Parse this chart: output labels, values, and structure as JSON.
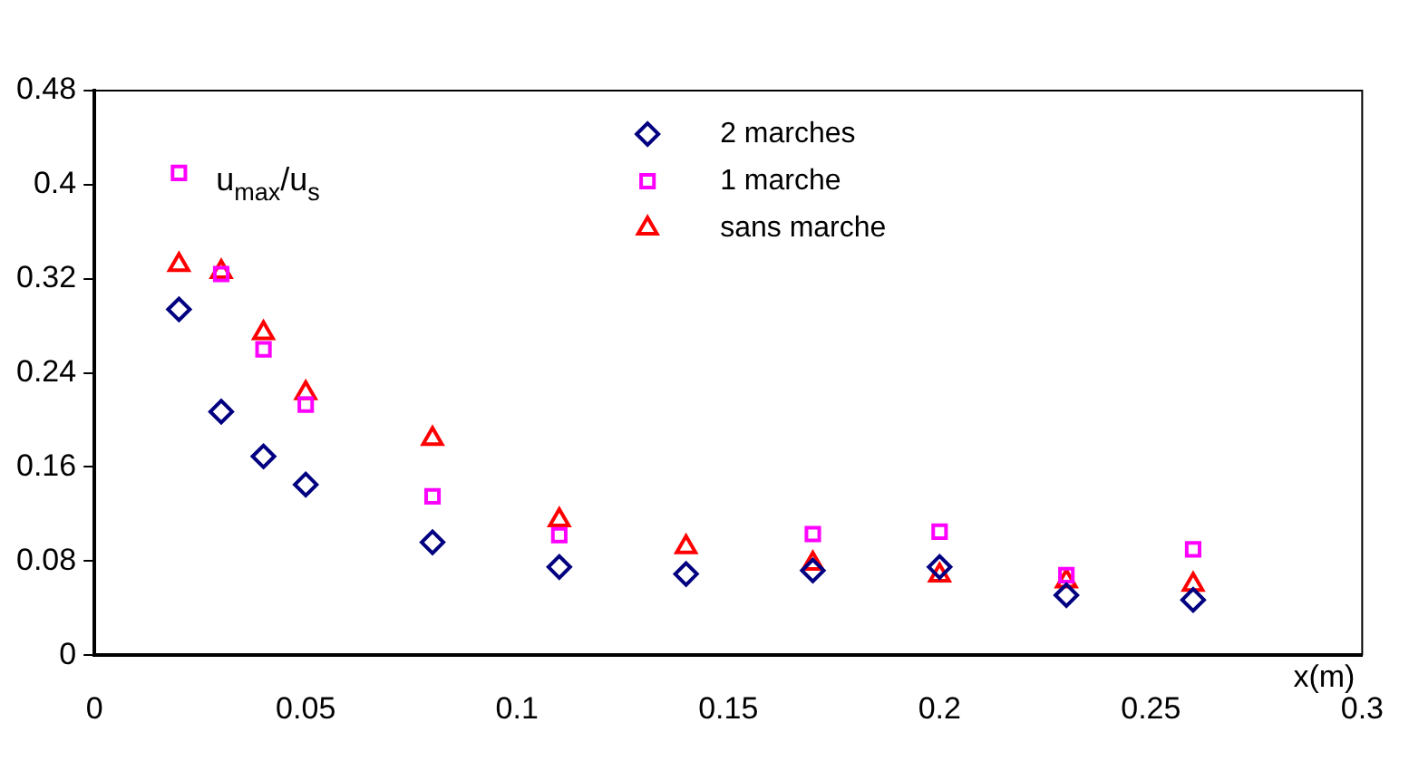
{
  "chart_data": {
    "type": "scatter",
    "xlabel": "x(m)",
    "ylabel": "u$_{max}$/u$_{s}$",
    "xlim": [
      0,
      0.3
    ],
    "xticks": [
      0,
      0.05,
      0.1,
      0.15,
      0.2,
      0.25,
      0.3
    ],
    "ylim": [
      0,
      0.48
    ],
    "yticks": [
      0,
      0.08,
      0.16,
      0.24,
      0.32,
      0.4,
      0.48
    ],
    "grid": false,
    "legend": "top right",
    "series": [
      {
        "name": "2 marches",
        "color": "#000080",
        "marker": "diamond",
        "x": [
          0.02,
          0.03,
          0.04,
          0.05,
          0.08,
          0.11,
          0.14,
          0.17,
          0.2,
          0.23,
          0.26
        ],
        "values": [
          0.294,
          0.207,
          0.169,
          0.145,
          0.096,
          0.075,
          0.069,
          0.072,
          0.075,
          0.051,
          0.047
        ]
      },
      {
        "name": "1 marche",
        "color": "#ff00ff",
        "marker": "square",
        "x": [
          0.02,
          0.03,
          0.04,
          0.05,
          0.08,
          0.11,
          0.17,
          0.2,
          0.23,
          0.26
        ],
        "values": [
          0.41,
          0.324,
          0.26,
          0.213,
          0.135,
          0.102,
          0.103,
          0.105,
          0.068,
          0.09
        ]
      },
      {
        "name": "sans marche",
        "color": "#ff0000",
        "marker": "triangle",
        "x": [
          0.02,
          0.03,
          0.04,
          0.05,
          0.08,
          0.11,
          0.14,
          0.17,
          0.2,
          0.23,
          0.26
        ],
        "values": [
          0.332,
          0.326,
          0.274,
          0.223,
          0.184,
          0.115,
          0.092,
          0.078,
          0.068,
          0.063,
          0.06
        ]
      }
    ]
  }
}
